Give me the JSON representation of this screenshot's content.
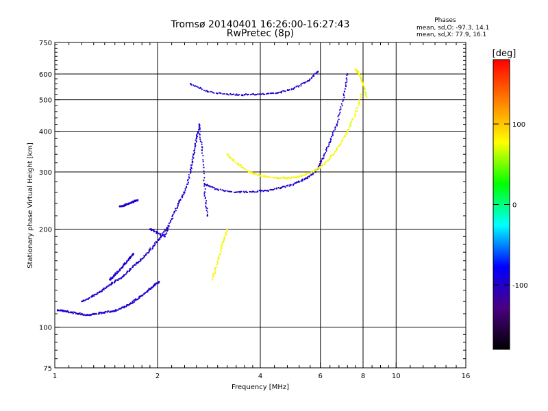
{
  "chart_data": {
    "type": "scatter",
    "title": "Tromsø 20140401 16:26:00-16:27:43",
    "subtitle": "RwPretec (8p)",
    "xlabel": "Frequency [MHz]",
    "ylabel": "Stationary phase Virtual Height [km]",
    "x_scale": "log",
    "y_scale": "log",
    "xlim": [
      1,
      16
    ],
    "ylim": [
      75,
      750
    ],
    "x_ticks": [
      1,
      2,
      4,
      6,
      8,
      10,
      16
    ],
    "x_tick_labels": [
      "1",
      "2",
      "4",
      "6",
      "8",
      "10",
      "16"
    ],
    "y_ticks": [
      75,
      100,
      200,
      300,
      400,
      500,
      600,
      750
    ],
    "y_tick_labels": [
      "75",
      "100",
      "200",
      "300",
      "400",
      "500",
      "600",
      "750"
    ],
    "grid": true,
    "phase_stats": {
      "heading": "Phases",
      "line_o": "mean, sd,O: -97.3, 14.1",
      "line_x": "mean, sd,X:  77.9, 16.1"
    },
    "colorbar": {
      "label": "[deg]",
      "range": [
        -180,
        180
      ],
      "ticks": [
        100,
        0,
        -100
      ],
      "tick_labels": [
        "100",
        "0",
        "-100"
      ],
      "colors": [
        "#000000",
        "#4b0082",
        "#0000ff",
        "#00ffff",
        "#00ff00",
        "#ffff00",
        "#ff8000",
        "#ff0000"
      ]
    },
    "series": [
      {
        "mode": "O",
        "phase_deg": -97,
        "trace": "low_E_F1",
        "x": [
          1.02,
          1.07,
          1.12,
          1.18,
          1.25,
          1.32,
          1.4,
          1.48,
          1.56,
          1.64,
          1.72,
          1.8,
          1.88,
          1.95,
          2.02
        ],
        "y": [
          113,
          112,
          111,
          110,
          109,
          110,
          111,
          112,
          114,
          117,
          121,
          125,
          130,
          134,
          138
        ]
      },
      {
        "mode": "O",
        "phase_deg": -97,
        "trace": "mid_ramp",
        "x": [
          1.2,
          1.28,
          1.35,
          1.42,
          1.5,
          1.58,
          1.66,
          1.75,
          1.85,
          1.95,
          2.05,
          2.15
        ],
        "y": [
          120,
          124,
          128,
          133,
          138,
          143,
          150,
          158,
          167,
          178,
          190,
          205
        ]
      },
      {
        "mode": "O",
        "phase_deg": -97,
        "trace": "upper_ramp",
        "x": [
          1.45,
          1.5,
          1.55,
          1.6,
          1.65,
          1.7
        ],
        "y": [
          140,
          145,
          150,
          156,
          162,
          168
        ]
      },
      {
        "mode": "O",
        "phase_deg": -97,
        "trace": "short_segment",
        "x": [
          1.55,
          1.6,
          1.65,
          1.7,
          1.75
        ],
        "y": [
          235,
          237,
          240,
          243,
          246
        ]
      },
      {
        "mode": "O",
        "phase_deg": -97,
        "trace": "cluster_2_2p6",
        "x": [
          1.9,
          2.0,
          2.1,
          2.2,
          2.3,
          2.4,
          2.5,
          2.55,
          2.6,
          2.65,
          2.7,
          2.75,
          2.8
        ],
        "y": [
          200,
          195,
          190,
          215,
          240,
          260,
          300,
          340,
          380,
          420,
          350,
          260,
          220
        ]
      },
      {
        "mode": "O",
        "phase_deg": -97,
        "trace": "F2_low",
        "x": [
          2.75,
          3.0,
          3.4,
          3.8,
          4.2,
          4.6,
          5.0,
          5.4,
          5.8
        ],
        "y": [
          275,
          265,
          260,
          261,
          263,
          268,
          275,
          285,
          300
        ]
      },
      {
        "mode": "O",
        "phase_deg": -97,
        "trace": "F2_rise",
        "x": [
          5.8,
          6.1,
          6.4,
          6.7,
          7.0,
          7.2
        ],
        "y": [
          300,
          330,
          370,
          420,
          500,
          600
        ]
      },
      {
        "mode": "O",
        "phase_deg": -97,
        "trace": "upper_arc",
        "x": [
          2.5,
          2.8,
          3.2,
          3.6,
          4.0,
          4.5,
          5.0,
          5.5,
          5.9
        ],
        "y": [
          560,
          530,
          520,
          518,
          520,
          525,
          540,
          570,
          610
        ]
      },
      {
        "mode": "X",
        "phase_deg": 78,
        "trace": "X_mid",
        "x": [
          3.2,
          3.4,
          3.7,
          4.0,
          4.4,
          4.8,
          5.2,
          5.6,
          6.0,
          6.4,
          6.8,
          7.2,
          7.6,
          7.9
        ],
        "y": [
          340,
          320,
          300,
          292,
          288,
          287,
          290,
          298,
          310,
          330,
          360,
          400,
          450,
          520
        ]
      },
      {
        "mode": "X",
        "phase_deg": 78,
        "trace": "X_top",
        "x": [
          7.6,
          7.8,
          8.0,
          8.2
        ],
        "y": [
          620,
          600,
          560,
          510
        ]
      },
      {
        "mode": "X",
        "phase_deg": 78,
        "trace": "X_low",
        "x": [
          2.9,
          3.0,
          3.1,
          3.2
        ],
        "y": [
          140,
          160,
          180,
          200
        ]
      }
    ]
  }
}
